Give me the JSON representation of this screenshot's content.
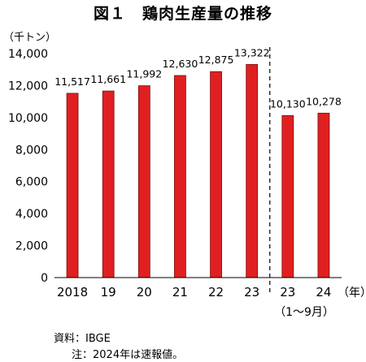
{
  "title": "図１　鶏肉生産量の推移",
  "ylabel": "（千トン）",
  "xlabel": "（年）",
  "sub_label": "（1～9月）",
  "source": "資料：IBGE",
  "note": "注：2024年は速報値。",
  "chart_data": {
    "type": "bar",
    "categories": [
      "2018",
      "19",
      "20",
      "21",
      "22",
      "23",
      "23",
      "24"
    ],
    "values": [
      11517,
      11661,
      11992,
      12630,
      12875,
      13322,
      10130,
      10278
    ],
    "value_labels": [
      "11,517",
      "11,661",
      "11,992",
      "12,630",
      "12,875",
      "13,322",
      "10,130",
      "10,278"
    ],
    "ylim": [
      0,
      14000
    ],
    "yticks": [
      0,
      2000,
      4000,
      6000,
      8000,
      10000,
      12000,
      14000
    ],
    "ytick_labels": [
      "0",
      "2,000",
      "4,000",
      "6,000",
      "8,000",
      "10,000",
      "12,000",
      "14,000"
    ],
    "bar_color": "#e02020",
    "bar_edge_color": "#7a1010",
    "grid": false,
    "separator": "dashed vertical line between annual values and January–September values"
  }
}
